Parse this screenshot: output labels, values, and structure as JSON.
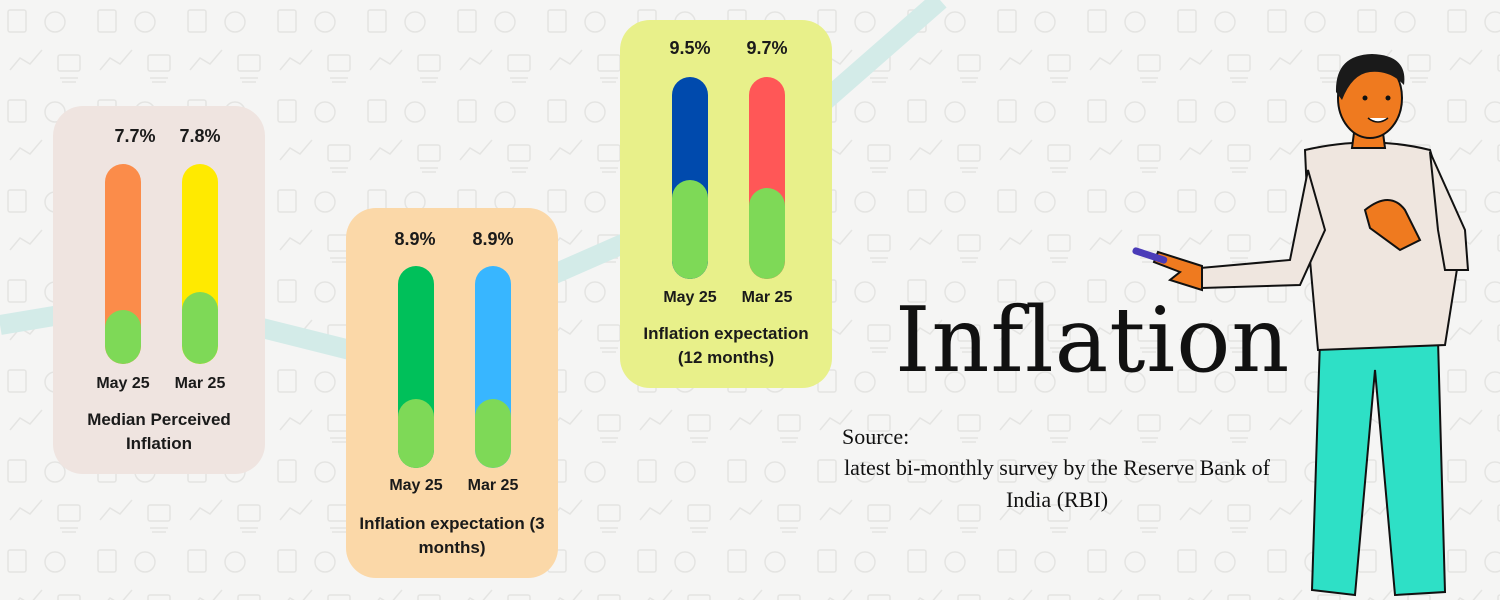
{
  "headline": "Inflation",
  "source": {
    "label": "Source:",
    "text": "latest bi-monthly survey by the Reserve Bank of India (RBI)"
  },
  "colors": {
    "background": "#f5f5f4",
    "trend_line": "#d3ebe8",
    "green_fill": "#7ed957"
  },
  "chart_data": [
    {
      "type": "bar",
      "title": "Median Perceived Inflation",
      "categories": [
        "May 25",
        "Mar 25"
      ],
      "values": [
        7.7,
        7.8
      ],
      "value_labels": [
        "7.7%",
        "7.8%"
      ],
      "bar_colors": [
        "#fb8c4a",
        "#ffea00"
      ],
      "card_color": "#efe4e0",
      "green_portion": [
        0.27,
        0.36
      ]
    },
    {
      "type": "bar",
      "title": "Inflation expectation (3 months)",
      "categories": [
        "May 25",
        "Mar 25"
      ],
      "values": [
        8.9,
        8.9
      ],
      "value_labels": [
        "8.9%",
        "8.9%"
      ],
      "bar_colors": [
        "#00c05a",
        "#38b6ff"
      ],
      "card_color": "#fbd8a8",
      "green_portion": [
        0.34,
        0.34
      ]
    },
    {
      "type": "bar",
      "title": "Inflation expectation (12 months)",
      "categories": [
        "May 25",
        "Mar 25"
      ],
      "values": [
        9.5,
        9.7
      ],
      "value_labels": [
        "9.5%",
        "9.7%"
      ],
      "bar_colors": [
        "#004aad",
        "#ff5757"
      ],
      "card_color": "#e8f08a",
      "green_portion": [
        0.49,
        0.45
      ]
    }
  ]
}
